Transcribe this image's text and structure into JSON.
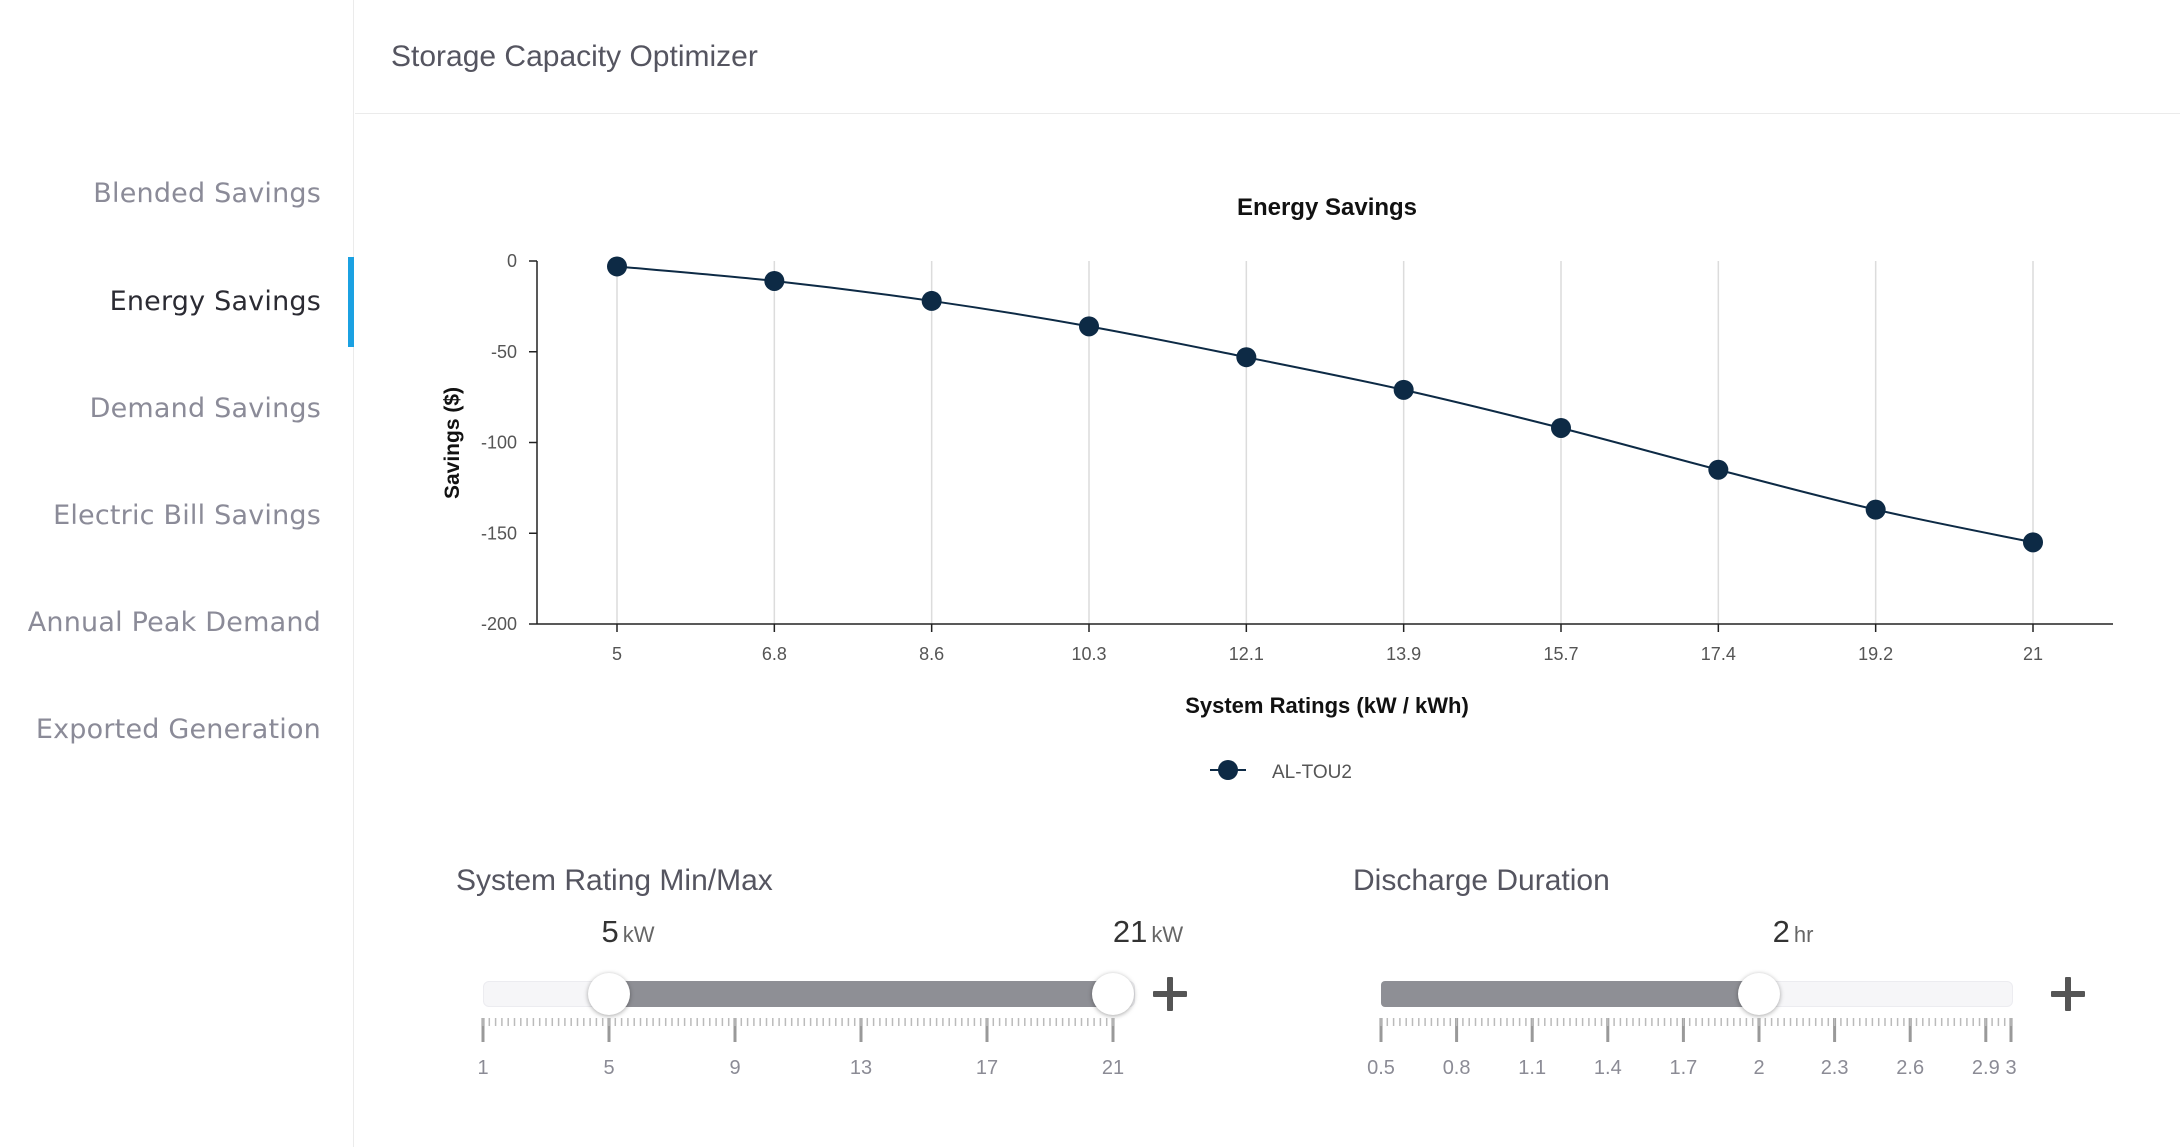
{
  "header": {
    "title": "Storage Capacity Optimizer"
  },
  "sidebar": {
    "items": [
      {
        "label": "Blended Savings",
        "active": false
      },
      {
        "label": "Energy Savings",
        "active": true
      },
      {
        "label": "Demand Savings",
        "active": false
      },
      {
        "label": "Electric Bill Savings",
        "active": false
      },
      {
        "label": "Annual Peak Demand",
        "active": false
      },
      {
        "label": "Exported Generation",
        "active": false
      }
    ],
    "accent_color": "#1ba1e2"
  },
  "chart_data": {
    "type": "line",
    "title": "Energy Savings",
    "xlabel": "System Ratings (kW / kWh)",
    "ylabel": "Savings ($)",
    "categories": [
      "5",
      "6.8",
      "8.6",
      "10.3",
      "12.1",
      "13.9",
      "15.7",
      "17.4",
      "19.2",
      "21"
    ],
    "yticks": [
      "0",
      "-50",
      "-100",
      "-150",
      "-200"
    ],
    "ylim": [
      -200,
      0
    ],
    "vertical_grid": true,
    "legend_position": "bottom-center",
    "series": [
      {
        "name": "AL-TOU2",
        "color": "#0d2a45",
        "values": [
          -3,
          -11,
          -22,
          -36,
          -53,
          -71,
          -92,
          -115,
          -137,
          -155
        ]
      }
    ]
  },
  "system_rating": {
    "title": "System Rating Min/Max",
    "min_value": "5",
    "max_value": "21",
    "unit": "kW",
    "range_min": 1,
    "range_max": 21,
    "tick_labels": [
      "1",
      "5",
      "9",
      "13",
      "17",
      "21"
    ]
  },
  "discharge_duration": {
    "title": "Discharge Duration",
    "value": "2",
    "unit": "hr",
    "range_min": 0.5,
    "range_max": 3,
    "tick_labels": [
      "0.5",
      "0.8",
      "1.1",
      "1.4",
      "1.7",
      "2",
      "2.3",
      "2.6",
      "2.9",
      "3"
    ]
  },
  "colors": {
    "fill": "#8e8f95",
    "line": "#0d2a45"
  }
}
